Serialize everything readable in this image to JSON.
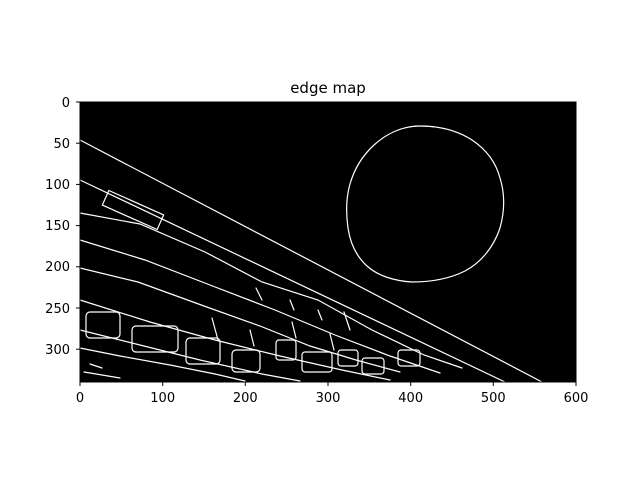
{
  "figure": {
    "title": "edge map",
    "image_description": "binary edge-detection output: thin white edges on black background",
    "x_axis": {
      "ticks": [
        "0",
        "100",
        "200",
        "300",
        "400",
        "500",
        "600"
      ],
      "range": [
        0,
        600
      ]
    },
    "y_axis": {
      "ticks": [
        "0",
        "50",
        "100",
        "150",
        "200",
        "250",
        "300"
      ],
      "range": [
        0,
        340
      ],
      "inverted": true
    },
    "colors": {
      "background": "#000000",
      "edges": "#ffffff",
      "frame": "#000000"
    }
  }
}
